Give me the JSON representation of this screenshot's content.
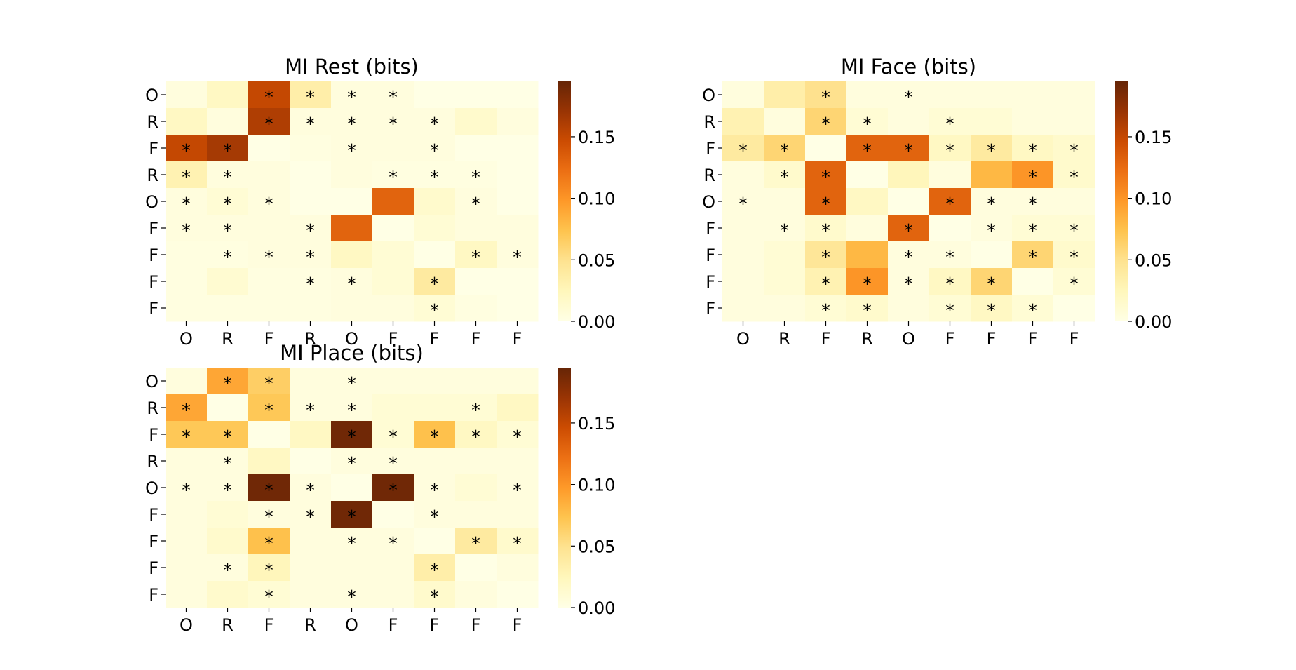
{
  "chart_data": [
    {
      "type": "heatmap",
      "title": "MI Rest (bits)",
      "x_labels": [
        "O",
        "R",
        "F",
        "R",
        "O",
        "F",
        "F",
        "F",
        "F"
      ],
      "y_labels": [
        "O",
        "R",
        "F",
        "R",
        "O",
        "F",
        "F",
        "F",
        "F"
      ],
      "colorbar": {
        "ticks": [
          "0.00",
          "0.05",
          "0.10",
          "0.15"
        ],
        "vmin": 0,
        "vmax": 0.195,
        "colormap": "YlOrBr"
      },
      "values": [
        [
          0.005,
          0.02,
          0.15,
          0.035,
          0.005,
          0.005,
          0.0,
          0.0,
          0.0
        ],
        [
          0.02,
          0.005,
          0.16,
          0.005,
          0.005,
          0.005,
          0.005,
          0.015,
          0.005
        ],
        [
          0.15,
          0.165,
          0.0,
          0.003,
          0.005,
          0.005,
          0.005,
          0.0,
          0.0
        ],
        [
          0.03,
          0.005,
          0.005,
          0.0,
          0.005,
          0.003,
          0.003,
          0.003,
          0.0
        ],
        [
          0.005,
          0.01,
          0.005,
          0.0,
          0.0,
          0.13,
          0.015,
          0.005,
          0.0
        ],
        [
          0.005,
          0.005,
          0.005,
          0.005,
          0.13,
          0.0,
          0.01,
          0.005,
          0.005
        ],
        [
          0.003,
          0.003,
          0.005,
          0.005,
          0.02,
          0.01,
          0.0,
          0.02,
          0.005
        ],
        [
          0.003,
          0.012,
          0.003,
          0.003,
          0.005,
          0.01,
          0.04,
          0.0,
          0.0
        ],
        [
          0.003,
          0.003,
          0.003,
          0.003,
          0.005,
          0.005,
          0.01,
          0.003,
          0.0
        ]
      ],
      "significant": [
        [
          0,
          0,
          1,
          1,
          1,
          1,
          0,
          0,
          0
        ],
        [
          0,
          0,
          1,
          1,
          1,
          1,
          1,
          0,
          0
        ],
        [
          1,
          1,
          0,
          0,
          1,
          0,
          1,
          0,
          0
        ],
        [
          1,
          1,
          0,
          0,
          0,
          1,
          1,
          1,
          0
        ],
        [
          1,
          1,
          1,
          0,
          0,
          0,
          0,
          1,
          0
        ],
        [
          1,
          1,
          0,
          1,
          0,
          0,
          0,
          0,
          0
        ],
        [
          0,
          1,
          1,
          1,
          0,
          0,
          0,
          1,
          1
        ],
        [
          0,
          0,
          0,
          1,
          1,
          0,
          1,
          0,
          0
        ],
        [
          0,
          0,
          0,
          0,
          0,
          0,
          1,
          0,
          0
        ]
      ]
    },
    {
      "type": "heatmap",
      "title": "MI Face (bits)",
      "x_labels": [
        "O",
        "R",
        "F",
        "R",
        "O",
        "F",
        "F",
        "F",
        "F"
      ],
      "y_labels": [
        "O",
        "R",
        "F",
        "R",
        "O",
        "F",
        "F",
        "F",
        "F"
      ],
      "colorbar": {
        "ticks": [
          "0.00",
          "0.05",
          "0.10",
          "0.15"
        ],
        "vmin": 0,
        "vmax": 0.195,
        "colormap": "YlOrBr"
      },
      "values": [
        [
          0.005,
          0.035,
          0.05,
          0.005,
          0.005,
          0.005,
          0.005,
          0.005,
          0.005
        ],
        [
          0.03,
          0.005,
          0.06,
          0.01,
          0.005,
          0.01,
          0.01,
          0.005,
          0.005
        ],
        [
          0.04,
          0.06,
          0.0,
          0.13,
          0.13,
          0.02,
          0.04,
          0.02,
          0.015
        ],
        [
          0.005,
          0.015,
          0.13,
          0.0,
          0.025,
          0.005,
          0.08,
          0.1,
          0.015
        ],
        [
          0.005,
          0.005,
          0.13,
          0.02,
          0.0,
          0.13,
          0.005,
          0.005,
          0.005
        ],
        [
          0.005,
          0.005,
          0.015,
          0.005,
          0.13,
          0.0,
          0.005,
          0.01,
          0.01
        ],
        [
          0.005,
          0.01,
          0.045,
          0.08,
          0.005,
          0.005,
          0.0,
          0.06,
          0.015
        ],
        [
          0.005,
          0.01,
          0.03,
          0.1,
          0.005,
          0.02,
          0.06,
          0.0,
          0.01
        ],
        [
          0.005,
          0.005,
          0.01,
          0.015,
          0.005,
          0.01,
          0.02,
          0.01,
          0.0
        ]
      ],
      "significant": [
        [
          0,
          0,
          1,
          0,
          1,
          0,
          0,
          0,
          0
        ],
        [
          0,
          0,
          1,
          1,
          0,
          1,
          0,
          0,
          0
        ],
        [
          1,
          1,
          0,
          1,
          1,
          1,
          1,
          1,
          1
        ],
        [
          0,
          1,
          1,
          0,
          0,
          0,
          0,
          1,
          1
        ],
        [
          1,
          0,
          1,
          0,
          0,
          1,
          1,
          1,
          0
        ],
        [
          0,
          1,
          1,
          0,
          1,
          0,
          1,
          1,
          1
        ],
        [
          0,
          0,
          1,
          0,
          1,
          1,
          0,
          1,
          1
        ],
        [
          0,
          0,
          1,
          1,
          1,
          1,
          1,
          0,
          1
        ],
        [
          0,
          0,
          1,
          1,
          0,
          1,
          1,
          1,
          0
        ]
      ]
    },
    {
      "type": "heatmap",
      "title": "MI Place (bits)",
      "x_labels": [
        "O",
        "R",
        "F",
        "R",
        "O",
        "F",
        "F",
        "F",
        "F"
      ],
      "y_labels": [
        "O",
        "R",
        "F",
        "R",
        "O",
        "F",
        "F",
        "F",
        "F"
      ],
      "colorbar": {
        "ticks": [
          "0.00",
          "0.05",
          "0.10",
          "0.15"
        ],
        "vmin": 0,
        "vmax": 0.195,
        "colormap": "YlOrBr"
      },
      "values": [
        [
          0.005,
          0.09,
          0.065,
          0.005,
          0.005,
          0.005,
          0.005,
          0.005,
          0.005
        ],
        [
          0.09,
          0.0,
          0.07,
          0.005,
          0.005,
          0.01,
          0.01,
          0.01,
          0.02
        ],
        [
          0.07,
          0.07,
          0.0,
          0.02,
          0.19,
          0.01,
          0.075,
          0.02,
          0.01
        ],
        [
          0.005,
          0.005,
          0.02,
          0.0,
          0.005,
          0.005,
          0.005,
          0.005,
          0.005
        ],
        [
          0.005,
          0.005,
          0.19,
          0.005,
          0.0,
          0.19,
          0.005,
          0.01,
          0.005
        ],
        [
          0.005,
          0.01,
          0.005,
          0.005,
          0.19,
          0.0,
          0.005,
          0.005,
          0.005
        ],
        [
          0.005,
          0.015,
          0.075,
          0.005,
          0.005,
          0.005,
          0.0,
          0.04,
          0.015
        ],
        [
          0.005,
          0.005,
          0.025,
          0.005,
          0.005,
          0.005,
          0.035,
          0.0,
          0.005
        ],
        [
          0.005,
          0.015,
          0.01,
          0.005,
          0.005,
          0.005,
          0.015,
          0.005,
          0.0
        ]
      ],
      "significant": [
        [
          0,
          1,
          1,
          0,
          1,
          0,
          0,
          0,
          0
        ],
        [
          1,
          0,
          1,
          1,
          1,
          0,
          0,
          1,
          0
        ],
        [
          1,
          1,
          0,
          0,
          1,
          1,
          1,
          1,
          1
        ],
        [
          0,
          1,
          0,
          0,
          1,
          1,
          0,
          0,
          0
        ],
        [
          1,
          1,
          1,
          1,
          0,
          1,
          1,
          0,
          1
        ],
        [
          0,
          0,
          1,
          1,
          1,
          0,
          1,
          0,
          0
        ],
        [
          0,
          0,
          1,
          0,
          1,
          1,
          0,
          1,
          1
        ],
        [
          0,
          1,
          1,
          0,
          0,
          0,
          1,
          0,
          0
        ],
        [
          0,
          0,
          1,
          0,
          1,
          0,
          1,
          0,
          0
        ]
      ]
    }
  ]
}
